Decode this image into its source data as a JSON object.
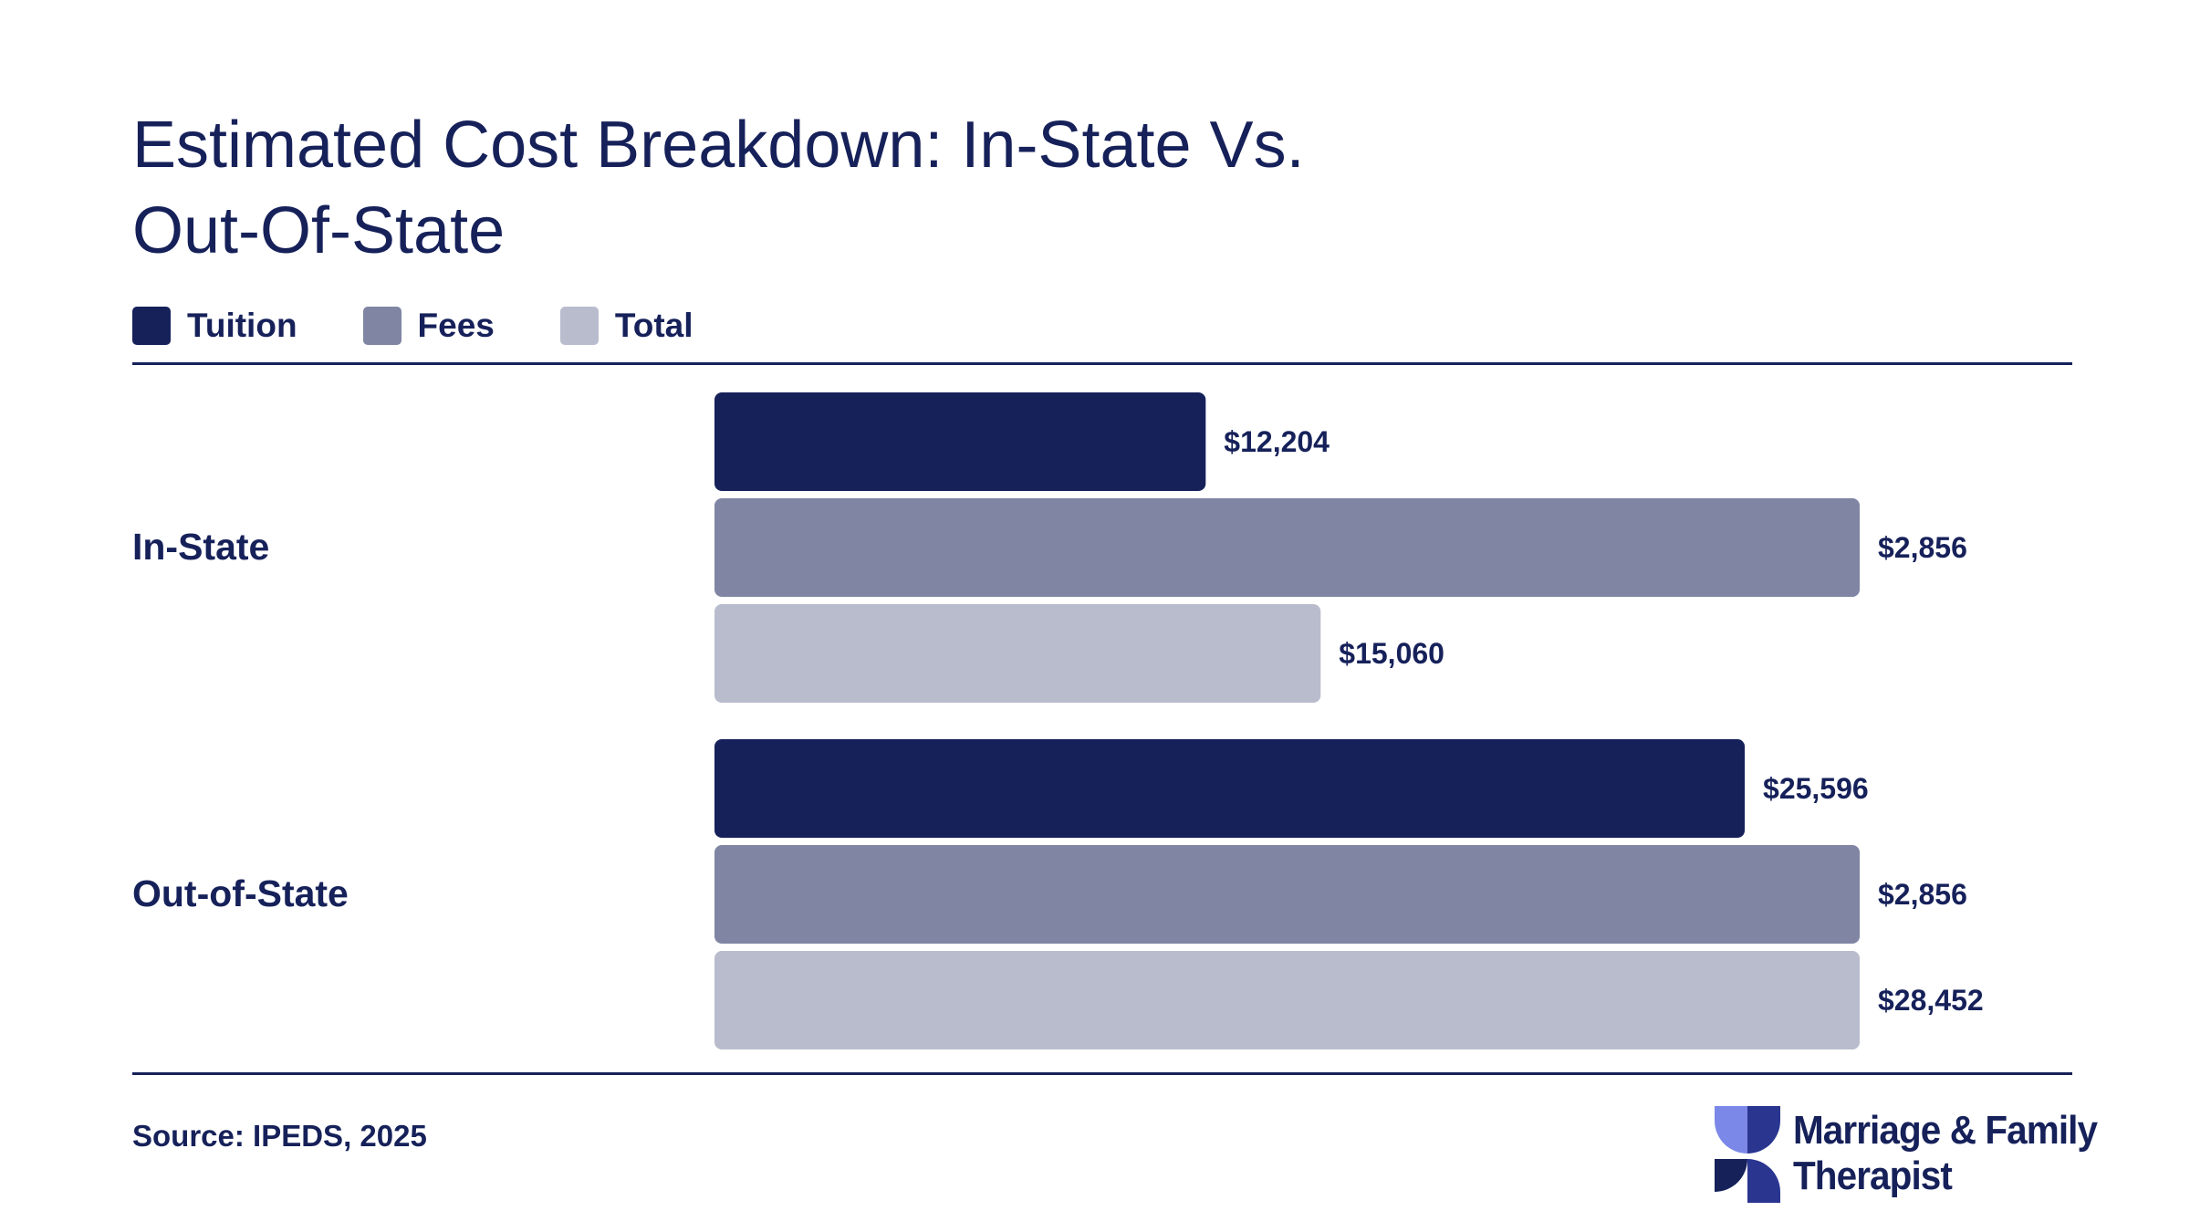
{
  "colors": {
    "tuition": "#16215a",
    "fees": "#7f85a3",
    "total": "#b9bccd",
    "text": "#16215a",
    "logo_light": "#7b88e8",
    "logo_dark": "#2a3590"
  },
  "chart_data": {
    "type": "bar",
    "orientation": "horizontal",
    "title": [
      "Estimated Cost Breakdown: In-State Vs.",
      "Out-Of-State"
    ],
    "categories": [
      "In-State",
      "Out-of-State"
    ],
    "series": [
      {
        "name": "Tuition",
        "values": [
          12204,
          25596
        ],
        "labels": [
          "$12,204",
          "$25,596"
        ]
      },
      {
        "name": "Fees",
        "values": [
          2856,
          2856
        ],
        "labels": [
          "$2,856",
          "$2,856"
        ]
      },
      {
        "name": "Total",
        "values": [
          15060,
          28452
        ],
        "labels": [
          "$15,060",
          "$28,452"
        ]
      }
    ],
    "legend_position": "top-left",
    "grid": false
  },
  "source": "Source: IPEDS, 2025",
  "logo": {
    "line1": "Marriage & Family",
    "line2": "Therapist",
    "icon": "pinwheel-logo-icon"
  }
}
